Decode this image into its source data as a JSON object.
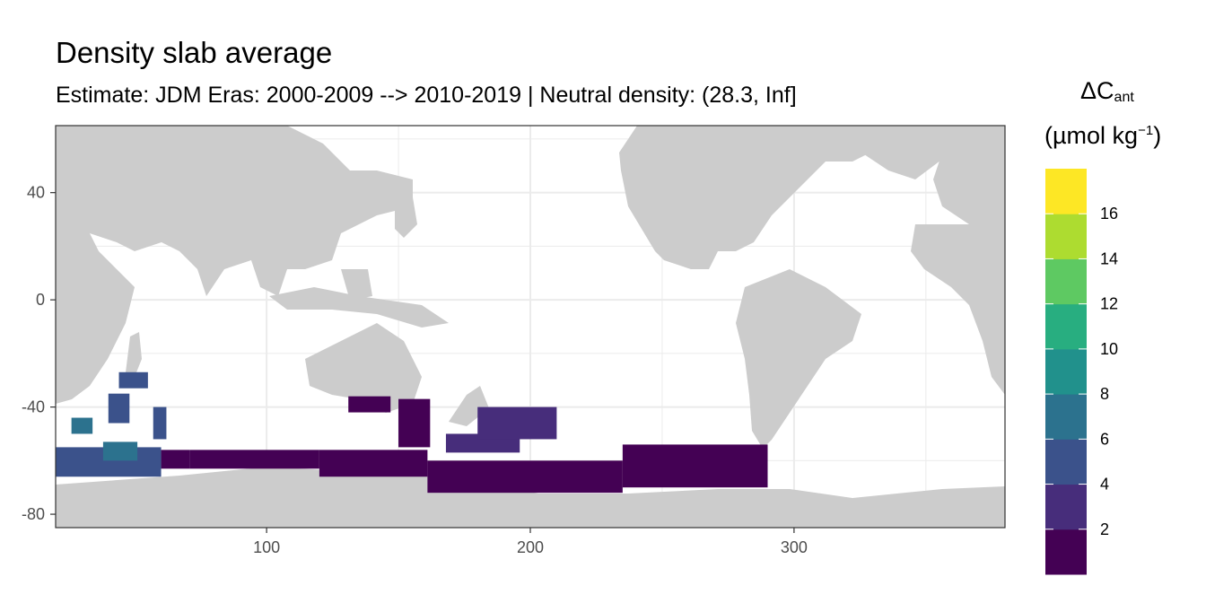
{
  "chart_data": {
    "type": "heatmap",
    "title": "Density slab average",
    "subtitle": "Estimate: JDM Eras: 2000-2009 --> 2010-2019 | Neutral density: (28.3, Inf]",
    "xlabel": "",
    "ylabel": "",
    "xlim": [
      20,
      380
    ],
    "ylim": [
      -85,
      65
    ],
    "x_ticks": [
      100,
      200,
      300
    ],
    "y_ticks": [
      40,
      0,
      -40,
      -80
    ],
    "grid": true,
    "legend": {
      "position": "right",
      "title_main": "ΔC",
      "title_sub": "ant",
      "title_unit_prefix": "(µmol kg",
      "title_unit_sup": "−1",
      "title_unit_suffix": ")",
      "breaks": [
        2,
        4,
        6,
        8,
        10,
        12,
        14,
        16
      ],
      "colors": [
        "#440154",
        "#472d7b",
        "#3b528b",
        "#2c728e",
        "#21918c",
        "#28ae80",
        "#5ec962",
        "#addc30",
        "#fde725"
      ]
    },
    "colors": {
      "land": "#cccccc",
      "ocean": "#ffffff",
      "grid": "#ebebeb"
    },
    "cells": [
      {
        "lon": [
          161,
          235
        ],
        "lat": [
          -72,
          -60
        ],
        "value": 1
      },
      {
        "lon": [
          235,
          290
        ],
        "lat": [
          -70,
          -54
        ],
        "value": 1
      },
      {
        "lon": [
          71,
          120
        ],
        "lat": [
          -63,
          -56
        ],
        "value": 1
      },
      {
        "lon": [
          120,
          161
        ],
        "lat": [
          -66,
          -56
        ],
        "value": 1
      },
      {
        "lon": [
          131,
          147
        ],
        "lat": [
          -42,
          -36
        ],
        "value": 1
      },
      {
        "lon": [
          150,
          162
        ],
        "lat": [
          -55,
          -37
        ],
        "value": 1
      },
      {
        "lon": [
          60,
          71
        ],
        "lat": [
          -63,
          -56
        ],
        "value": 1
      },
      {
        "lon": [
          168,
          196
        ],
        "lat": [
          -57,
          -50
        ],
        "value": 3
      },
      {
        "lon": [
          180,
          210
        ],
        "lat": [
          -52,
          -40
        ],
        "value": 3
      },
      {
        "lon": [
          20,
          60
        ],
        "lat": [
          -66,
          -55
        ],
        "value": 5
      },
      {
        "lon": [
          38,
          51
        ],
        "lat": [
          -60,
          -53
        ],
        "value": 7
      },
      {
        "lon": [
          40,
          48
        ],
        "lat": [
          -46,
          -35
        ],
        "value": 5
      },
      {
        "lon": [
          44,
          55
        ],
        "lat": [
          -33,
          -27
        ],
        "value": 5
      },
      {
        "lon": [
          57,
          62
        ],
        "lat": [
          -52,
          -40
        ],
        "value": 5
      },
      {
        "lon": [
          26,
          34
        ],
        "lat": [
          -50,
          -44
        ],
        "value": 8
      }
    ]
  }
}
